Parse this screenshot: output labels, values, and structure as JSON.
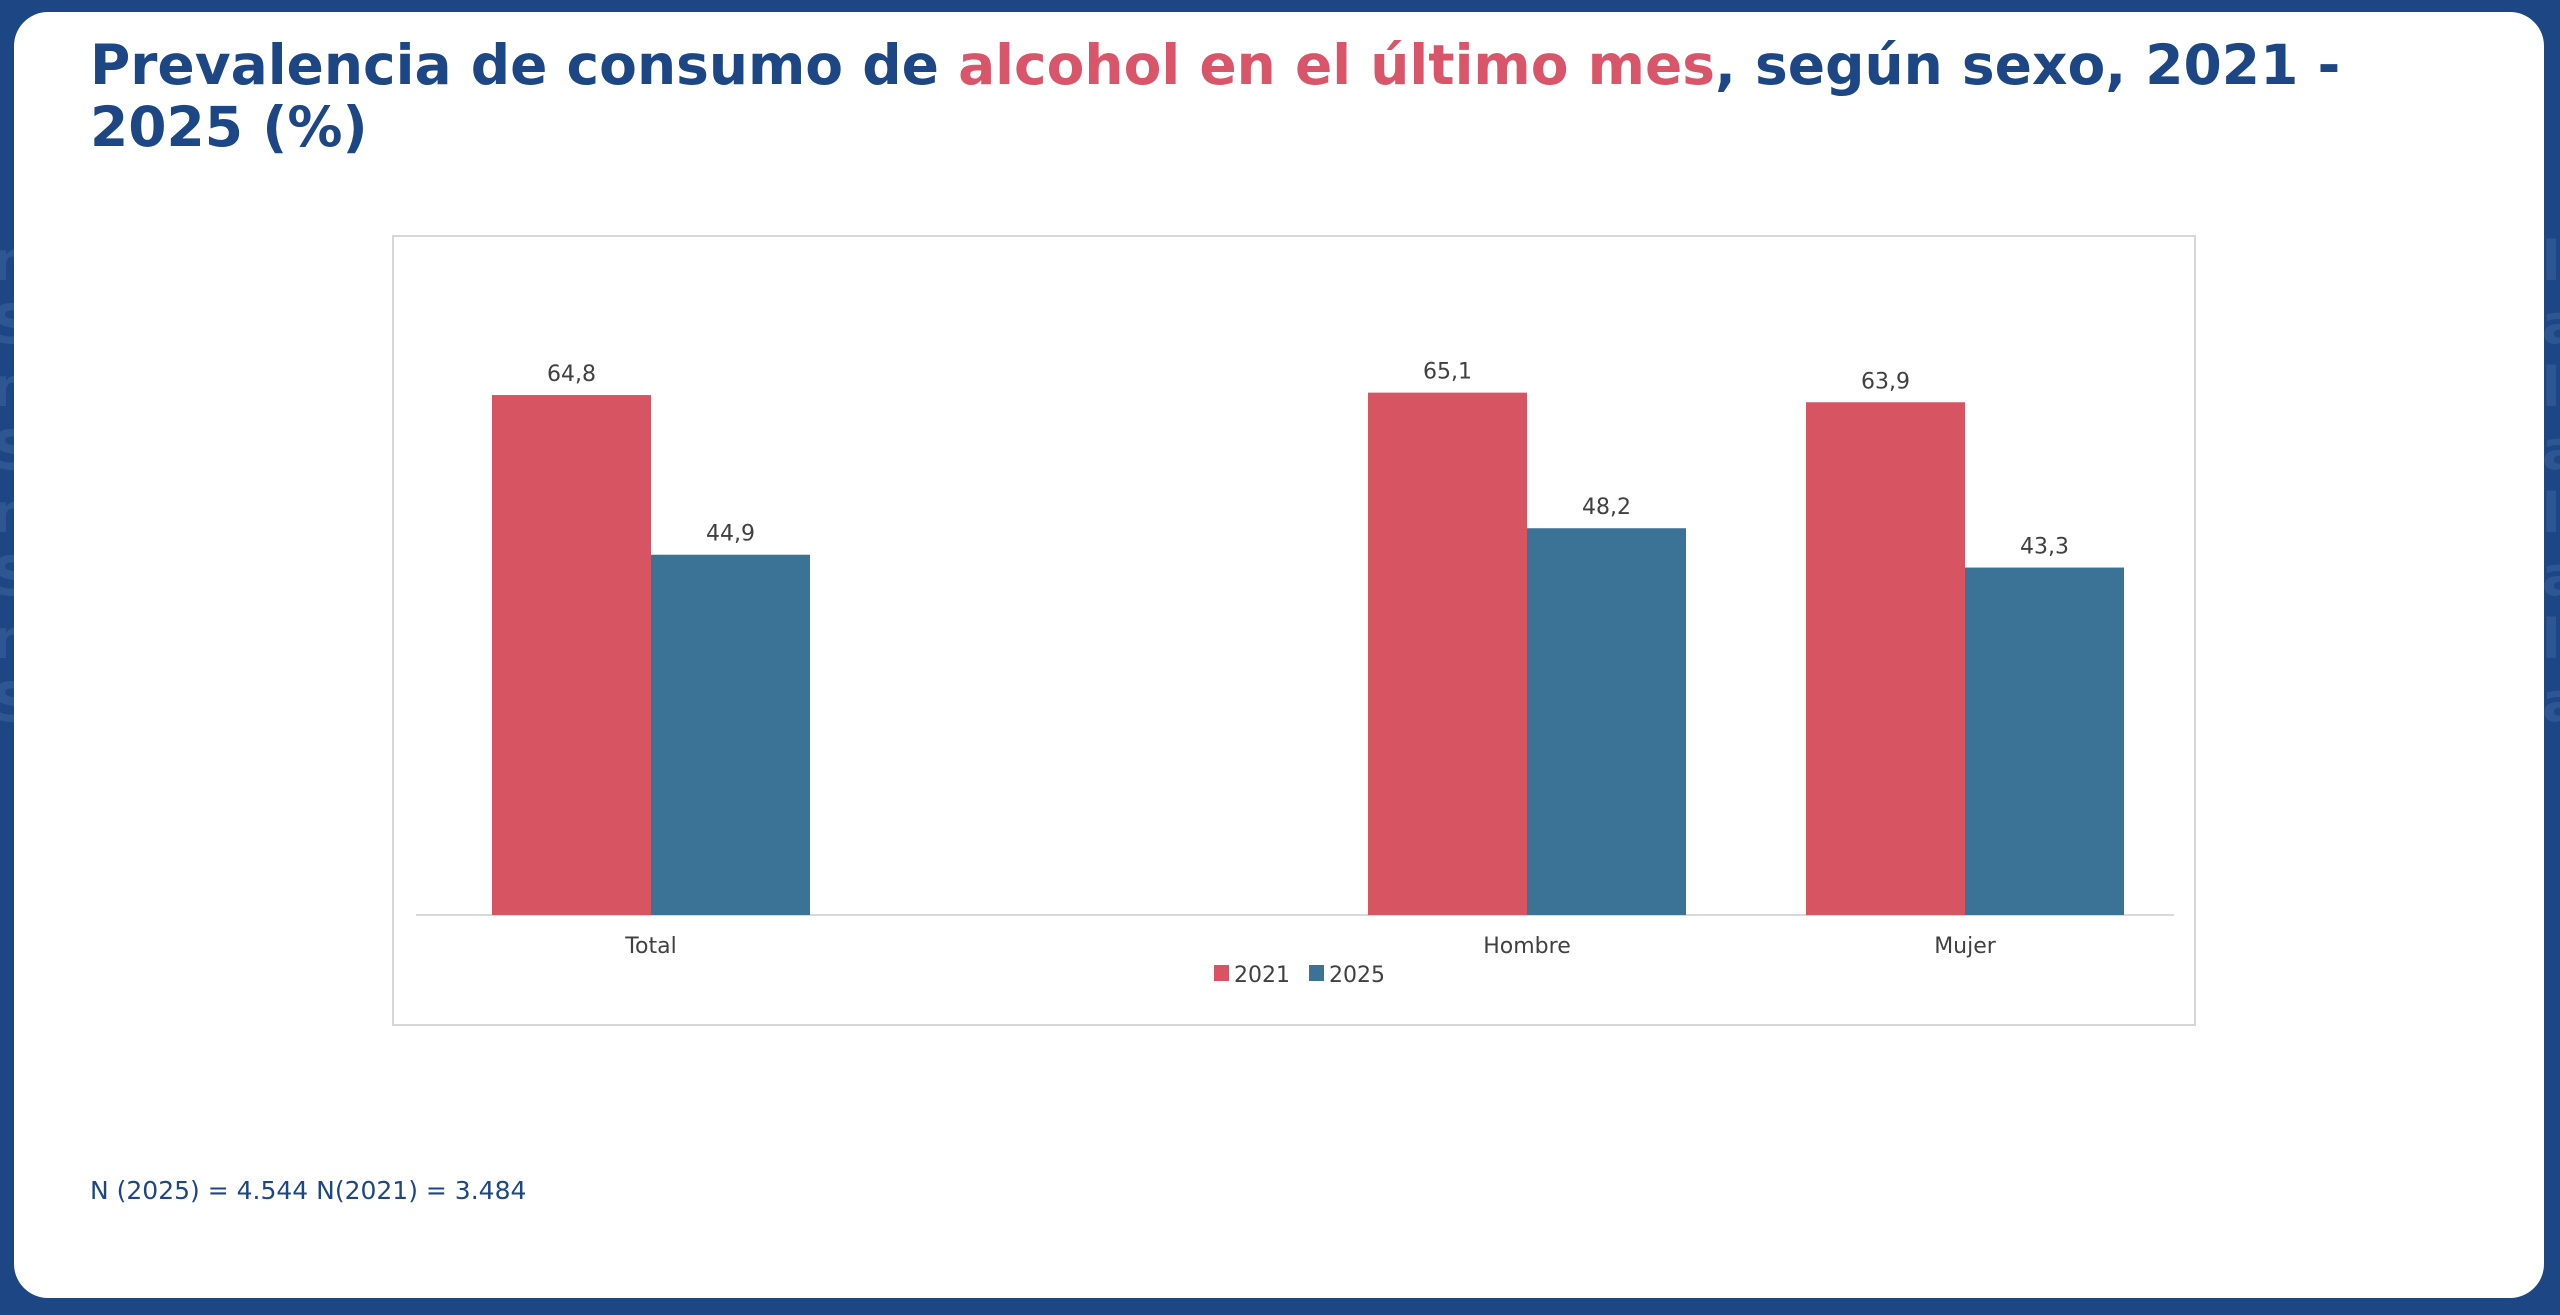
{
  "page": {
    "title_parts": [
      {
        "text": "Prevalencia de consumo de ",
        "highlight": false
      },
      {
        "text": "alcohol en el último mes",
        "highlight": true
      },
      {
        "text": ", según sexo, 2021 - 2025 (%)",
        "highlight": false
      }
    ],
    "footnote": "N (2025) = 4.544 N(2021) = 3.484",
    "colors": {
      "frame": "#1c4784",
      "title": "#1c4784",
      "highlight": "#d9566a"
    }
  },
  "chart_data": {
    "type": "bar",
    "title": "Prevalencia de consumo de alcohol en el último mes, según sexo, 2021 - 2025 (%)",
    "xlabel": "",
    "ylabel": "",
    "categories": [
      "Total",
      "Hombre",
      "Mujer"
    ],
    "series": [
      {
        "name": "2021",
        "color": "#d75563",
        "values": [
          64.8,
          65.1,
          63.9
        ],
        "labels": [
          "64,8",
          "65,1",
          "63,9"
        ]
      },
      {
        "name": "2025",
        "color": "#3a7396",
        "values": [
          44.9,
          48.2,
          43.3
        ],
        "labels": [
          "44,9",
          "48,2",
          "43,3"
        ]
      }
    ],
    "ylim": [
      0,
      83
    ],
    "grid": false,
    "legend": "bottom-center",
    "data_labels": true
  }
}
